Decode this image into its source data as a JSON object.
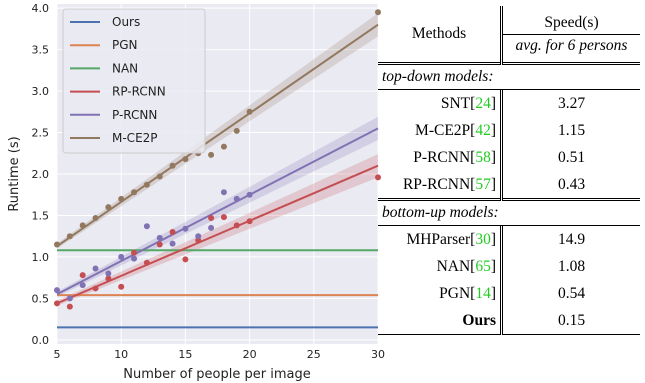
{
  "chart_data": {
    "type": "scatter",
    "xlabel": "Number of people per image",
    "ylabel": "Runtime (s)",
    "xlim": [
      5,
      30
    ],
    "ylim": [
      -0.05,
      4.05
    ],
    "xticks": [
      5,
      10,
      15,
      20,
      25,
      30
    ],
    "yticks": [
      0.0,
      0.5,
      1.0,
      1.5,
      2.0,
      2.5,
      3.0,
      3.5,
      4.0
    ],
    "grid": true,
    "legend_position": "top-left",
    "series": [
      {
        "name": "Ours",
        "color": "#4c72b0",
        "kind": "constant",
        "value": 0.15,
        "points": []
      },
      {
        "name": "PGN",
        "color": "#dd8452",
        "kind": "constant",
        "value": 0.54,
        "points": []
      },
      {
        "name": "NAN",
        "color": "#55a868",
        "kind": "constant",
        "value": 1.08,
        "points": []
      },
      {
        "name": "RP-RCNN",
        "color": "#c44e52",
        "kind": "linear",
        "fit": [
          [
            5,
            0.44
          ],
          [
            30,
            2.1
          ]
        ],
        "points": [
          [
            5,
            0.44
          ],
          [
            6,
            0.4
          ],
          [
            7,
            0.78
          ],
          [
            8,
            0.62
          ],
          [
            9,
            0.74
          ],
          [
            10,
            0.64
          ],
          [
            11,
            1.05
          ],
          [
            12,
            0.93
          ],
          [
            13,
            1.15
          ],
          [
            14,
            1.3
          ],
          [
            15,
            0.97
          ],
          [
            16,
            1.2
          ],
          [
            17,
            1.47
          ],
          [
            18,
            1.48
          ],
          [
            19,
            1.38
          ],
          [
            20,
            1.43
          ],
          [
            30,
            1.96
          ]
        ]
      },
      {
        "name": "P-RCNN",
        "color": "#8172b3",
        "kind": "linear",
        "fit": [
          [
            5,
            0.55
          ],
          [
            30,
            2.55
          ]
        ],
        "points": [
          [
            5,
            0.6
          ],
          [
            6,
            0.5
          ],
          [
            7,
            0.66
          ],
          [
            8,
            0.86
          ],
          [
            9,
            0.8
          ],
          [
            10,
            1.0
          ],
          [
            11,
            0.98
          ],
          [
            12,
            1.37
          ],
          [
            13,
            1.23
          ],
          [
            14,
            1.16
          ],
          [
            15,
            1.34
          ],
          [
            16,
            1.25
          ],
          [
            17,
            1.35
          ],
          [
            18,
            1.78
          ],
          [
            19,
            1.7
          ],
          [
            20,
            1.75
          ]
        ]
      },
      {
        "name": "M-CE2P",
        "color": "#937860",
        "kind": "linear",
        "fit": [
          [
            5,
            1.13
          ],
          [
            30,
            3.8
          ]
        ],
        "points": [
          [
            5,
            1.15
          ],
          [
            6,
            1.25
          ],
          [
            7,
            1.38
          ],
          [
            8,
            1.47
          ],
          [
            9,
            1.6
          ],
          [
            10,
            1.7
          ],
          [
            11,
            1.78
          ],
          [
            12,
            1.87
          ],
          [
            13,
            1.97
          ],
          [
            14,
            2.1
          ],
          [
            15,
            2.18
          ],
          [
            16,
            2.25
          ],
          [
            17,
            2.23
          ],
          [
            18,
            2.33
          ],
          [
            19,
            2.52
          ],
          [
            20,
            2.75
          ],
          [
            30,
            3.95
          ]
        ]
      }
    ]
  },
  "table": {
    "header": {
      "methods": "Methods",
      "speed": "Speed(s)",
      "speed_sub": "avg. for 6 persons"
    },
    "groups": [
      {
        "title": "top-down models:",
        "rows": [
          {
            "name": "SNT",
            "cite": "24",
            "value": "3.27"
          },
          {
            "name": "M-CE2P",
            "cite": "42",
            "value": "1.15"
          },
          {
            "name": "P-RCNN",
            "cite": "58",
            "value": "0.51"
          },
          {
            "name": "RP-RCNN",
            "cite": "57",
            "value": "0.43"
          }
        ]
      },
      {
        "title": "bottom-up models:",
        "rows": [
          {
            "name": "MHParser",
            "cite": "30",
            "value": "14.9"
          },
          {
            "name": "NAN",
            "cite": "65",
            "value": "1.08"
          },
          {
            "name": "PGN",
            "cite": "14",
            "value": "0.54"
          },
          {
            "name": "Ours",
            "cite": "",
            "value": "0.15",
            "bold": true
          }
        ]
      }
    ]
  }
}
